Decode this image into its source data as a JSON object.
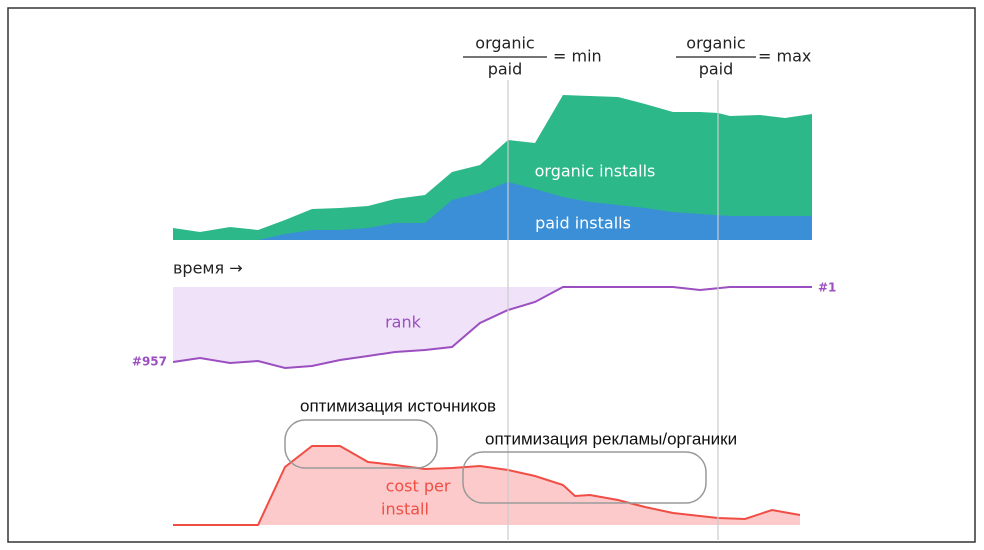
{
  "top": {
    "fraction_min": {
      "numerator": "organic",
      "denominator": "paid",
      "relation": "= min"
    },
    "fraction_max": {
      "numerator": "organic",
      "denominator": "paid",
      "relation": "= max"
    },
    "organic_label": "organic installs",
    "paid_label": "paid installs",
    "time_label": "время →"
  },
  "rank": {
    "label": "rank",
    "low": "#957",
    "high": "#1"
  },
  "cost": {
    "label_line1": "cost per",
    "label_line2": "install"
  },
  "annotations": [
    "оптимизация источников",
    "оптимизация рекламы/органики"
  ]
}
